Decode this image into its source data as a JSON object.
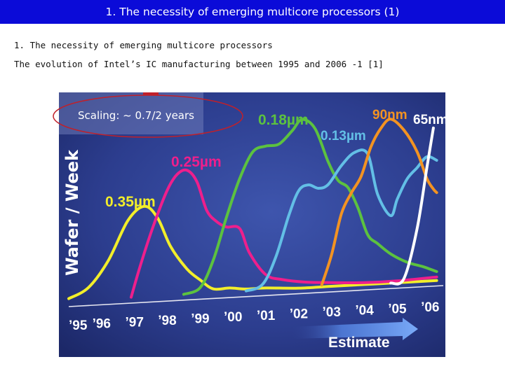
{
  "slide_title": "1. The necessity of emerging multicore processors (1)",
  "subtitle1": "1. The necessity of emerging multicore processors",
  "subtitle2": "The evolution of Intel’s IC manufacturing between 1995 and 2006 -1 [1]",
  "chart_data": {
    "type": "line",
    "ylabel": "Wafer / Week",
    "annotation": "Scaling: ~ 0.7/2 years",
    "estimate_label": "Estimate",
    "categories": [
      "’95",
      "’96",
      "’97",
      "’98",
      "’99",
      "’00",
      "’01",
      "’02",
      "’03",
      "’04",
      "’05",
      "’06"
    ],
    "xlim": [
      1995,
      2006.4
    ],
    "ylim": [
      0,
      100
    ],
    "grid": false,
    "series": [
      {
        "name": "0.35µm",
        "color": "#f2ee2a",
        "x": [
          1995,
          1995.6,
          1996.2,
          1996.8,
          1997.3,
          1997.7,
          1998.1,
          1998.6,
          1999.0,
          1999.4,
          1999.9,
          2000.4,
          2001.0,
          2002.0,
          2003.0,
          2004.0,
          2005.0,
          2006.2
        ],
        "y": [
          4,
          9,
          22,
          42,
          49,
          43,
          28,
          16,
          10,
          5,
          5,
          4,
          4,
          3,
          3,
          3,
          3,
          3
        ]
      },
      {
        "name": "0.25µm",
        "color": "#ee1f8c",
        "x": [
          1996.9,
          1997.2,
          1997.6,
          1998.0,
          1998.3,
          1998.6,
          1998.9,
          1999.2,
          1999.5,
          1999.8,
          2000.2,
          2000.5,
          2001.0,
          2001.5,
          2002.2,
          2003.0,
          2004.0,
          2005.0,
          2006.2
        ],
        "y": [
          3,
          20,
          40,
          57,
          65,
          67,
          61,
          46,
          40,
          37,
          36,
          23,
          11,
          8,
          6,
          5,
          4,
          4,
          5
        ]
      },
      {
        "name": "0.18µm",
        "color": "#5cc23f",
        "x": [
          1998.5,
          1999.0,
          1999.4,
          1999.8,
          2000.2,
          2000.6,
          2001.0,
          2001.4,
          2001.8,
          2002.1,
          2002.5,
          2002.9,
          2003.2,
          2003.5,
          2003.8,
          2004.1,
          2004.4,
          2004.8,
          2005.3,
          2005.8,
          2006.2
        ],
        "y": [
          3,
          6,
          20,
          42,
          62,
          76,
          79,
          80,
          87,
          93,
          88,
          70,
          60,
          56,
          45,
          30,
          25,
          19,
          14,
          11,
          8
        ]
      },
      {
        "name": "0.13µm",
        "color": "#63bfe6",
        "x": [
          2000.4,
          2000.9,
          2001.3,
          2001.7,
          2002.0,
          2002.3,
          2002.6,
          2002.9,
          2003.3,
          2003.7,
          2004.1,
          2004.4,
          2004.8,
          2005.0,
          2005.3,
          2005.6,
          2005.9,
          2006.2
        ],
        "y": [
          3,
          6,
          20,
          42,
          55,
          58,
          56,
          58,
          68,
          75,
          74,
          52,
          40,
          49,
          60,
          66,
          72,
          70
        ]
      },
      {
        "name": "90nm",
        "color": "#f39322",
        "x": [
          2002.7,
          2003.0,
          2003.3,
          2003.6,
          2003.9,
          2004.2,
          2004.5,
          2004.8,
          2005.2,
          2005.6,
          2005.9,
          2006.1,
          2006.2
        ],
        "y": [
          4,
          20,
          42,
          53,
          62,
          78,
          88,
          93,
          87,
          75,
          60,
          54,
          52
        ]
      },
      {
        "name": "65nm",
        "color": "#ffffff",
        "x": [
          2004.8,
          2005.2,
          2005.6,
          2005.9,
          2006.1
        ],
        "y": [
          3,
          5,
          32,
          66,
          88
        ]
      }
    ]
  },
  "colors": {
    "title_bar": "#0b0bd8",
    "chart_bg": "#2a3b8a",
    "estimate_arrow": "#5b8ff0",
    "annotation_ellipse": "#c0202a"
  }
}
